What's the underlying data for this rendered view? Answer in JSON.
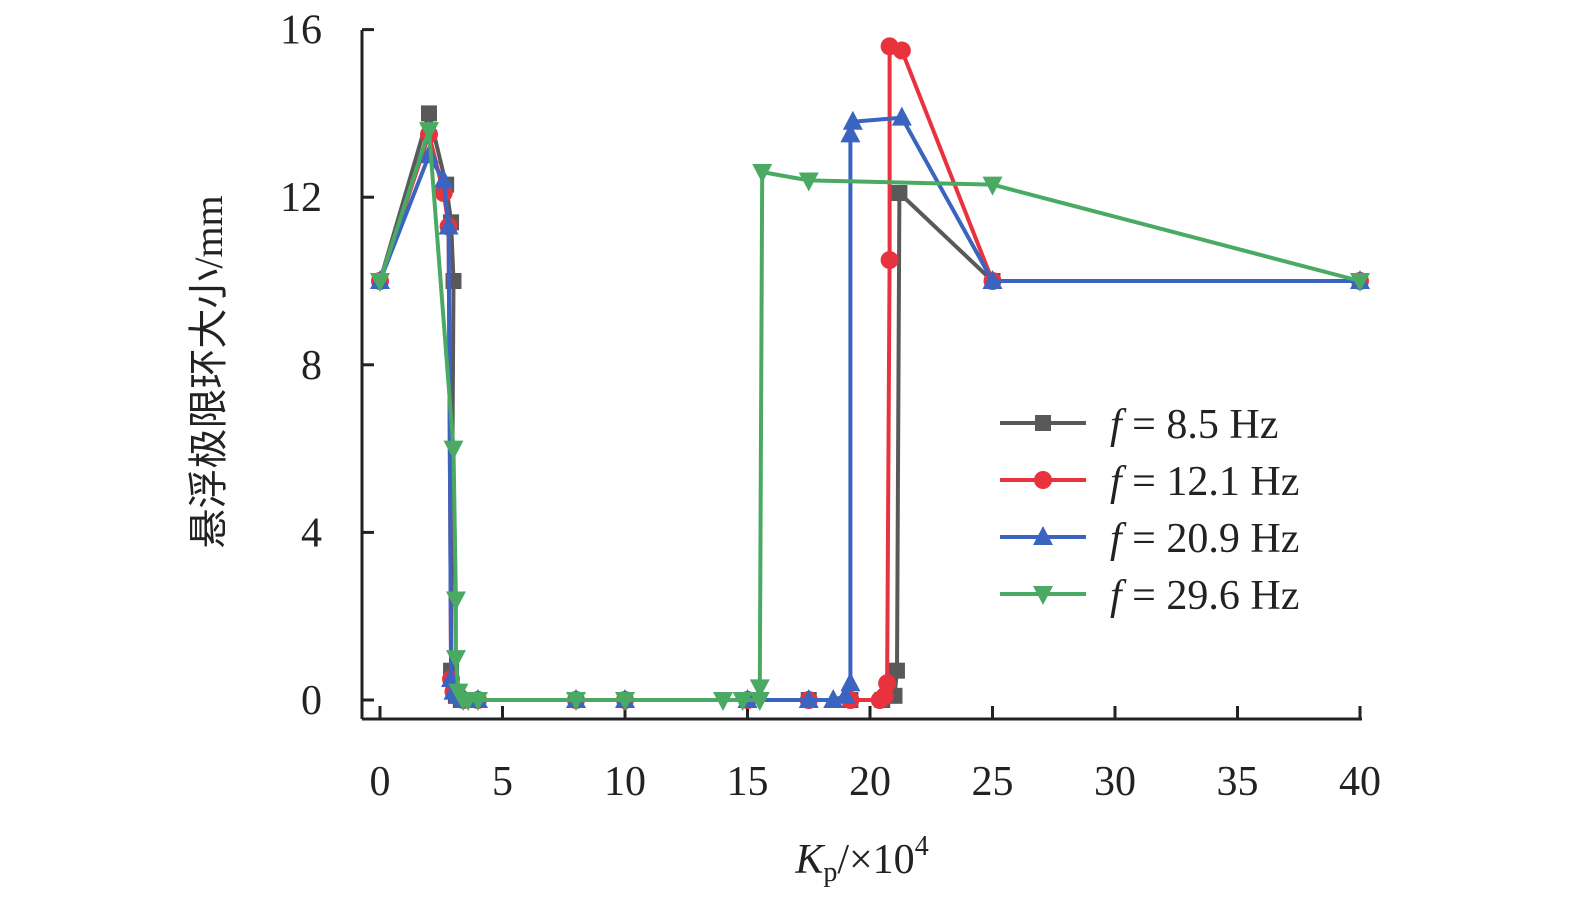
{
  "chart_data": {
    "type": "line",
    "title": "",
    "xlabel": {
      "symbol": "K",
      "subscript": "p",
      "suffix": "/×10",
      "superscript": "4"
    },
    "ylabel": "悬浮极限环大小/mm",
    "ylim": [
      0,
      16
    ],
    "y_ticks": [
      0,
      4,
      8,
      12,
      16
    ],
    "x_tick_labels": [
      "0",
      "5",
      "10",
      "15",
      "20",
      "25",
      "30",
      "35",
      "40"
    ],
    "x_axis_note": "piecewise axis: 0–25 spaced linearly, then 30, 35, 40 at equal intervals",
    "grid": false,
    "legend_position": "right",
    "series": [
      {
        "name": "f = 8.5 Hz",
        "legend": {
          "italic": "f",
          "rest": " = 8.5 Hz"
        },
        "color": "#595959",
        "marker": "square",
        "points": [
          [
            0,
            10
          ],
          [
            2,
            14
          ],
          [
            2.7,
            12.3
          ],
          [
            2.9,
            11.4
          ],
          [
            3.0,
            10
          ],
          [
            2.9,
            0.7
          ],
          [
            3.0,
            0.2
          ],
          [
            3.1,
            0.1
          ],
          [
            3.3,
            0
          ],
          [
            4,
            0
          ],
          [
            8,
            0
          ],
          [
            10,
            0
          ],
          [
            15,
            0
          ],
          [
            17.5,
            0
          ],
          [
            19.2,
            0
          ],
          [
            20.5,
            0
          ],
          [
            21,
            0.1
          ],
          [
            21.1,
            0.7
          ],
          [
            21.2,
            12.1
          ],
          [
            25,
            10
          ],
          [
            40,
            10
          ]
        ]
      },
      {
        "name": "f = 12.1 Hz",
        "legend": {
          "italic": "f",
          "rest": " = 12.1 Hz"
        },
        "color": "#e8333f",
        "marker": "circle",
        "points": [
          [
            0,
            10
          ],
          [
            2,
            13.5
          ],
          [
            2.6,
            12.1
          ],
          [
            2.8,
            11.3
          ],
          [
            2.9,
            0.5
          ],
          [
            3.0,
            0.2
          ],
          [
            3.2,
            0.1
          ],
          [
            3.4,
            0
          ],
          [
            4,
            0
          ],
          [
            8,
            0
          ],
          [
            10,
            0
          ],
          [
            15,
            0
          ],
          [
            17.5,
            0
          ],
          [
            19.2,
            0
          ],
          [
            20.4,
            0
          ],
          [
            20.6,
            0.1
          ],
          [
            20.7,
            0.4
          ],
          [
            20.8,
            10.5
          ],
          [
            20.8,
            15.6
          ],
          [
            21.3,
            15.5
          ],
          [
            25,
            10
          ],
          [
            40,
            10
          ]
        ]
      },
      {
        "name": "f = 20.9 Hz",
        "legend": {
          "italic": "f",
          "rest": " = 20.9 Hz"
        },
        "color": "#3b64c0",
        "marker": "triangle-up",
        "points": [
          [
            0,
            10
          ],
          [
            2,
            13
          ],
          [
            2.6,
            12.4
          ],
          [
            2.8,
            11.3
          ],
          [
            2.9,
            0.5
          ],
          [
            3.0,
            0.2
          ],
          [
            3.2,
            0.1
          ],
          [
            3.4,
            0
          ],
          [
            4,
            0
          ],
          [
            8,
            0
          ],
          [
            10,
            0
          ],
          [
            15,
            0
          ],
          [
            17.5,
            0
          ],
          [
            18.5,
            0
          ],
          [
            19.0,
            0.1
          ],
          [
            19.2,
            0.4
          ],
          [
            19.2,
            13.5
          ],
          [
            19.3,
            13.8
          ],
          [
            21.3,
            13.9
          ],
          [
            25,
            10
          ],
          [
            40,
            10
          ]
        ]
      },
      {
        "name": "f = 29.6 Hz",
        "legend": {
          "italic": "f",
          "rest": " = 29.6 Hz"
        },
        "color": "#4aaa64",
        "marker": "triangle-down",
        "points": [
          [
            0,
            10
          ],
          [
            2,
            13.6
          ],
          [
            3.0,
            6
          ],
          [
            3.1,
            2.4
          ],
          [
            3.1,
            1.0
          ],
          [
            3.2,
            0.2
          ],
          [
            3.4,
            0
          ],
          [
            3.6,
            0
          ],
          [
            4,
            0
          ],
          [
            8,
            0
          ],
          [
            10,
            0
          ],
          [
            14,
            0
          ],
          [
            14.8,
            0
          ],
          [
            15.5,
            0
          ],
          [
            15.5,
            0.3
          ],
          [
            15.6,
            12.6
          ],
          [
            17.5,
            12.4
          ],
          [
            25,
            12.3
          ],
          [
            40,
            10
          ]
        ]
      }
    ]
  }
}
